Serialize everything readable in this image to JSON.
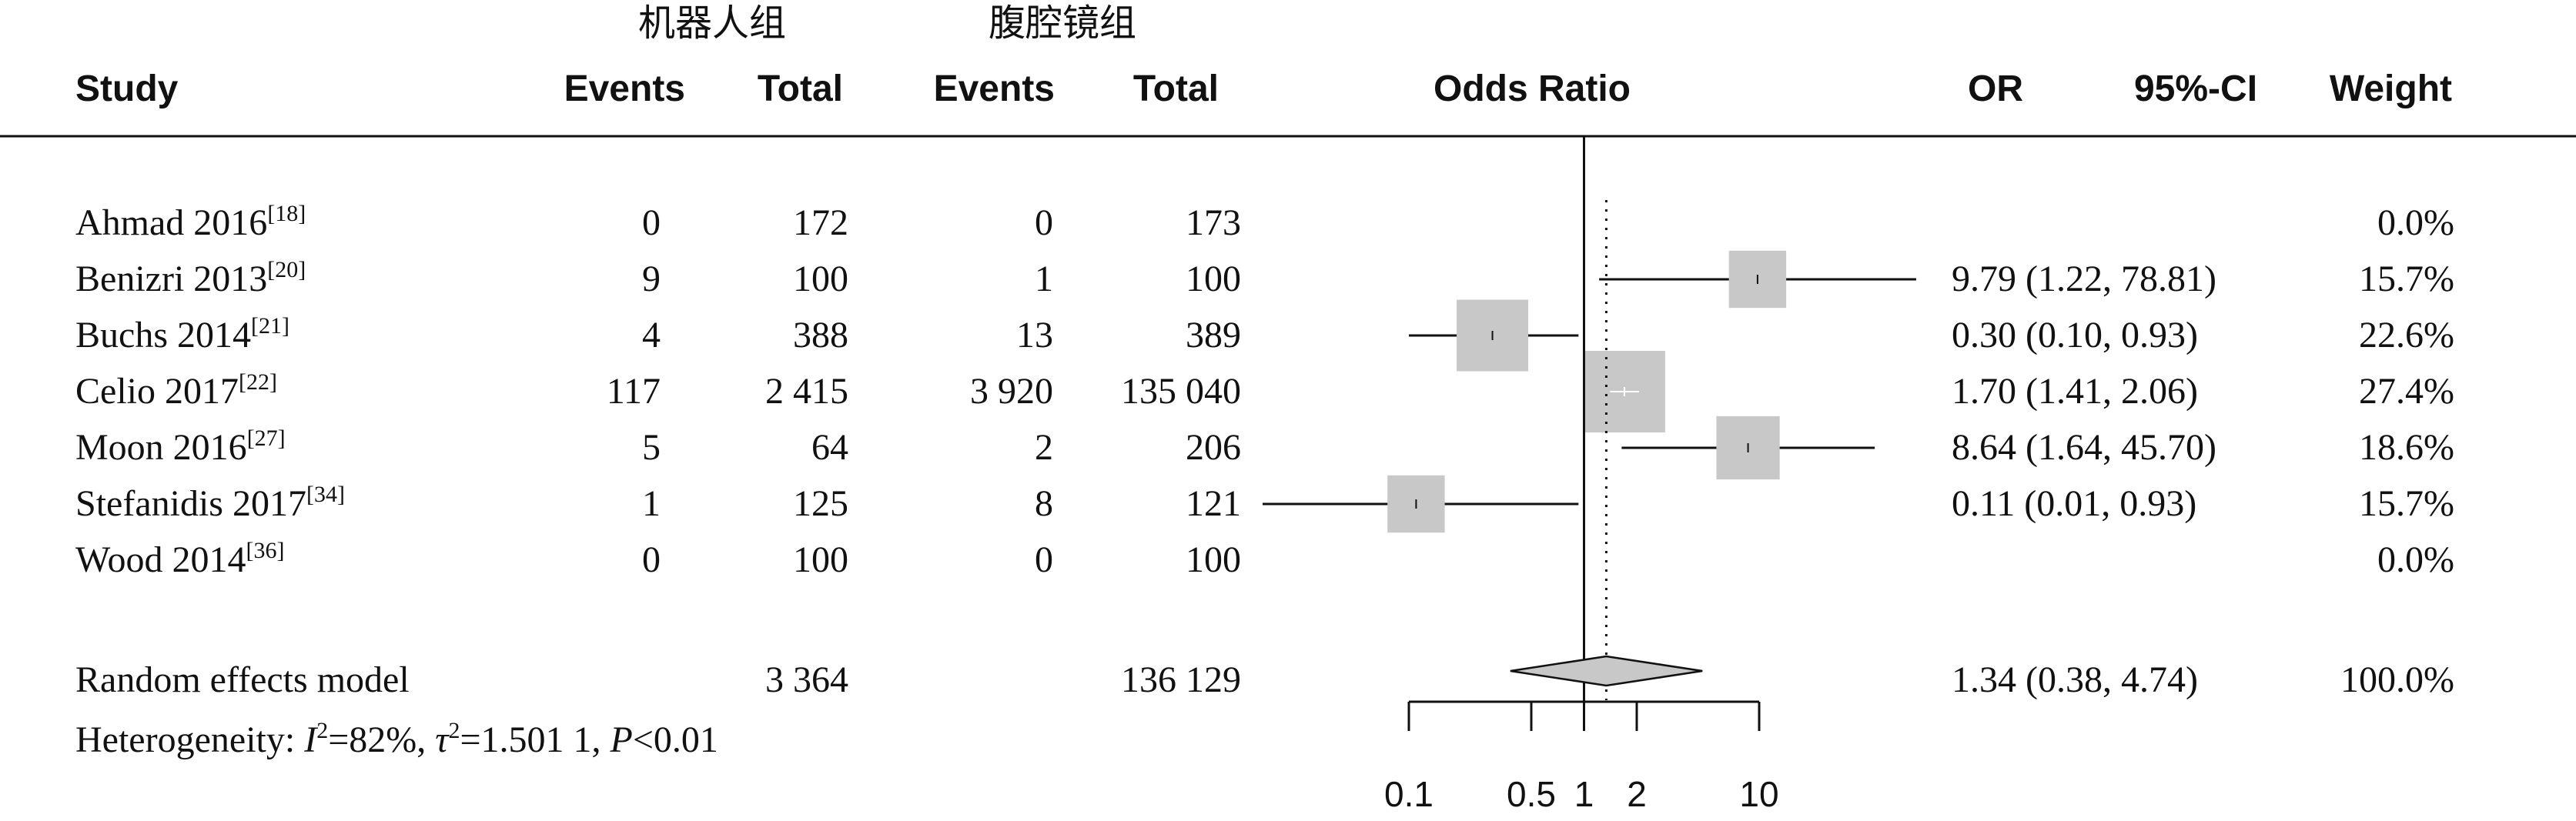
{
  "headers": {
    "group_robot": "机器人组",
    "group_lap": "腹腔镜组",
    "study": "Study",
    "events": "Events",
    "total": "Total",
    "odds_ratio": "Odds Ratio",
    "or": "OR",
    "ci": "95%-CI",
    "weight": "Weight"
  },
  "chart_data": {
    "type": "forest",
    "x_scale": "log",
    "xlim": [
      0.1,
      10
    ],
    "reference_line": 1,
    "pooled_line": 1.34,
    "x_ticks": [
      "0.1",
      "0.5",
      "1",
      "2",
      "10"
    ],
    "x_tick_values": [
      0.1,
      0.5,
      1,
      2,
      10
    ],
    "studies": [
      {
        "name": "Ahmad 2016",
        "ref": "[18]",
        "e1": "0",
        "t1": "172",
        "e2": "0",
        "t2": "173",
        "or_text": "",
        "weight": "0.0%",
        "or": null,
        "lo": null,
        "hi": null,
        "w": 0
      },
      {
        "name": "Benizri 2013",
        "ref": "[20]",
        "e1": "9",
        "t1": "100",
        "e2": "1",
        "t2": "100",
        "or_text": "9.79 (1.22, 78.81)",
        "weight": "15.7%",
        "or": 9.79,
        "lo": 1.22,
        "hi": 78.81,
        "w": 15.7
      },
      {
        "name": "Buchs 2014",
        "ref": "[21]",
        "e1": "4",
        "t1": "388",
        "e2": "13",
        "t2": "389",
        "or_text": "0.30 (0.10, 0.93)",
        "weight": "22.6%",
        "or": 0.3,
        "lo": 0.1,
        "hi": 0.93,
        "w": 22.6
      },
      {
        "name": "Celio 2017",
        "ref": "[22]",
        "e1": "117",
        "t1": "2 415",
        "e2": "3 920",
        "t2": "135 040",
        "or_text": "1.70 (1.41, 2.06)",
        "weight": "27.4%",
        "or": 1.7,
        "lo": 1.41,
        "hi": 2.06,
        "w": 27.4
      },
      {
        "name": "Moon 2016",
        "ref": "[27]",
        "e1": "5",
        "t1": "64",
        "e2": "2",
        "t2": "206",
        "or_text": "8.64 (1.64, 45.70)",
        "weight": "18.6%",
        "or": 8.64,
        "lo": 1.64,
        "hi": 45.7,
        "w": 18.6
      },
      {
        "name": "Stefanidis 2017",
        "ref": "[34]",
        "e1": "1",
        "t1": "125",
        "e2": "8",
        "t2": "121",
        "or_text": "0.11 (0.01, 0.93)",
        "weight": "15.7%",
        "or": 0.11,
        "lo": 0.01,
        "hi": 0.93,
        "w": 15.7
      },
      {
        "name": "Wood 2014",
        "ref": "[36]",
        "e1": "0",
        "t1": "100",
        "e2": "0",
        "t2": "100",
        "or_text": "",
        "weight": "0.0%",
        "or": null,
        "lo": null,
        "hi": null,
        "w": 0
      }
    ],
    "pooled": {
      "label": "Random effects model",
      "t1": "3 364",
      "t2": "136 129",
      "or_text": "1.34 (0.38, 4.74)",
      "weight": "100.0%",
      "or": 1.34,
      "lo": 0.38,
      "hi": 4.74
    },
    "heterogeneity": {
      "prefix": "Heterogeneity: ",
      "i_symbol": "I",
      "i_value": "=82%, ",
      "tau_symbol": "τ",
      "tau_value": "=1.501 1, ",
      "p_symbol": "P",
      "p_value": "<0.01"
    }
  }
}
